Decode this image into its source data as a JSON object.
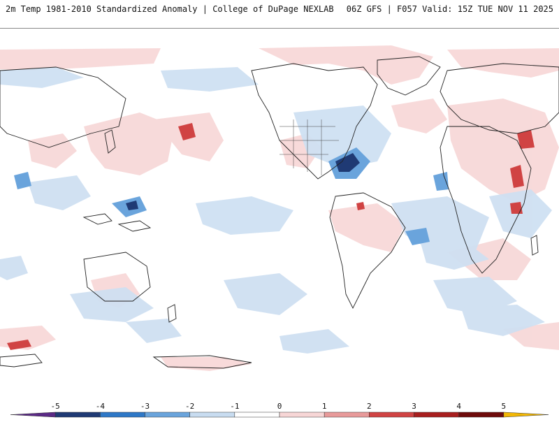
{
  "header": {
    "title": "2m Temp 1981-2010 Standardized Anomaly | College of DuPage NEXLAB",
    "run_info": "06Z GFS | F057 Valid: 15Z TUE NOV 11 2025"
  },
  "colorbar": {
    "ticks": [
      "-5",
      "-4",
      "-3",
      "-2",
      "-1",
      "0",
      "1",
      "2",
      "3",
      "4",
      "5"
    ],
    "colors": [
      "#5b2a86",
      "#1f3a74",
      "#2e78c7",
      "#6aa4dc",
      "#c8dcf0",
      "#ffffff",
      "#f7d6d6",
      "#e89a9a",
      "#d04343",
      "#a81e1e",
      "#6e0b0b",
      "#f2b705"
    ]
  },
  "map": {
    "anomaly_colors": {
      "cold_strong": "#1f3a74",
      "cold": "#6aa4dc",
      "cool": "#cfe0f2",
      "warm": "#f7d6d6",
      "hot": "#d04343",
      "hot_strong": "#a81e1e"
    }
  }
}
